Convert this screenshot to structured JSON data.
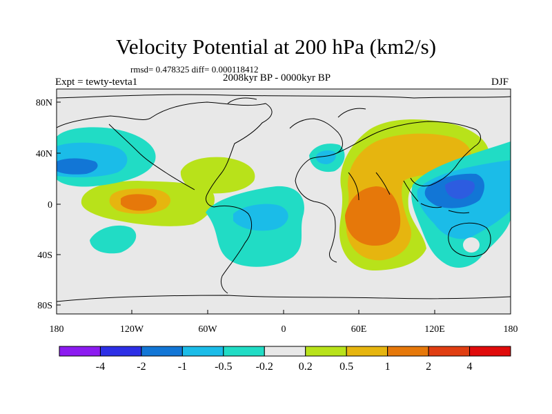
{
  "title": "Velocity Potential at 200 hPa (km2/s)",
  "stats": "rmsd= 0.478325 diff= 0.000118412",
  "experiment": "Expt = tewty-tevta1",
  "period": "2008kyr BP - 0000kyr BP",
  "season": "DJF",
  "lat_ticks": [
    "80N",
    "40N",
    "0",
    "40S",
    "80S"
  ],
  "lon_ticks": [
    "180",
    "120W",
    "60W",
    "0",
    "60E",
    "120E",
    "180"
  ],
  "colorbar": {
    "labels": [
      "-4",
      "-2",
      "-1",
      "-0.5",
      "-0.2",
      "0.2",
      "0.5",
      "1",
      "2",
      "4"
    ],
    "colors": [
      "#8c1bf0",
      "#2d2fe6",
      "#1276d6",
      "#1bbce8",
      "#21dcc5",
      "#e8e8e8",
      "#b8e21a",
      "#e6b50f",
      "#e6780a",
      "#e03e12",
      "#e00b0b"
    ]
  },
  "features": [
    {
      "name": "east-pacific-negative",
      "category": "-1"
    },
    {
      "name": "tropical-pacific-positive",
      "category": "1"
    },
    {
      "name": "indian-ocean-positive-center",
      "category": "2"
    },
    {
      "name": "maritime-continent-negative",
      "category": "-1"
    }
  ]
}
